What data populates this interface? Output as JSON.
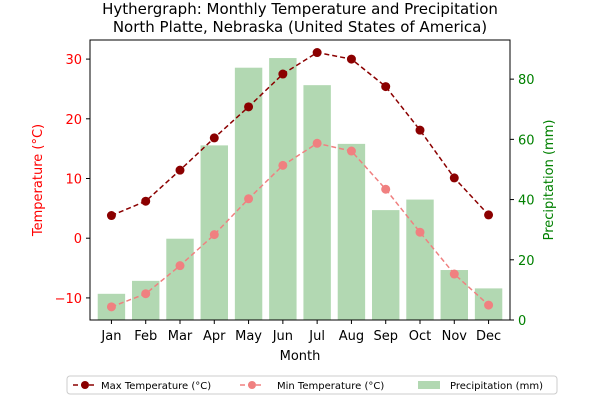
{
  "chart_data": {
    "type": "bar+line",
    "title_line1": "Hythergraph: Monthly Temperature and Precipitation",
    "title_line2": "North Platte, Nebraska (United States of America)",
    "xlabel": "Month",
    "ylabel_left": "Temperature (°C)",
    "ylabel_right": "Precipitation (mm)",
    "categories": [
      "Jan",
      "Feb",
      "Mar",
      "Apr",
      "May",
      "Jun",
      "Jul",
      "Aug",
      "Sep",
      "Oct",
      "Nov",
      "Dec"
    ],
    "left_axis": {
      "ylim": [
        -13.7,
        33.2
      ],
      "ticks": [
        -10,
        0,
        10,
        20,
        30
      ]
    },
    "right_axis": {
      "ylim": [
        0,
        93
      ],
      "ticks": [
        0,
        20,
        40,
        60,
        80
      ]
    },
    "series": [
      {
        "name": "Max Temperature (°C)",
        "kind": "line",
        "axis": "left",
        "color": "#8b0000",
        "values": [
          3.8,
          6.2,
          11.4,
          16.8,
          22.0,
          27.5,
          31.1,
          30.0,
          25.4,
          18.1,
          10.1,
          3.9
        ]
      },
      {
        "name": "Min Temperature (°C)",
        "kind": "line",
        "axis": "left",
        "color": "#f08080",
        "values": [
          -11.5,
          -9.3,
          -4.6,
          0.6,
          6.6,
          12.2,
          15.9,
          14.6,
          8.2,
          1.0,
          -6.0,
          -11.2
        ]
      },
      {
        "name": "Precipitation (mm)",
        "kind": "bar",
        "axis": "right",
        "color": "#b2d8b2",
        "values": [
          8.7,
          13.0,
          27.0,
          58.0,
          83.8,
          87.0,
          78.0,
          58.5,
          36.5,
          40.0,
          16.6,
          10.5
        ]
      }
    ],
    "legend_position": "bottom-center",
    "grid": false,
    "colors": {
      "left_axis": "#ff0000",
      "right_axis": "#008000",
      "text": "#000000"
    }
  }
}
